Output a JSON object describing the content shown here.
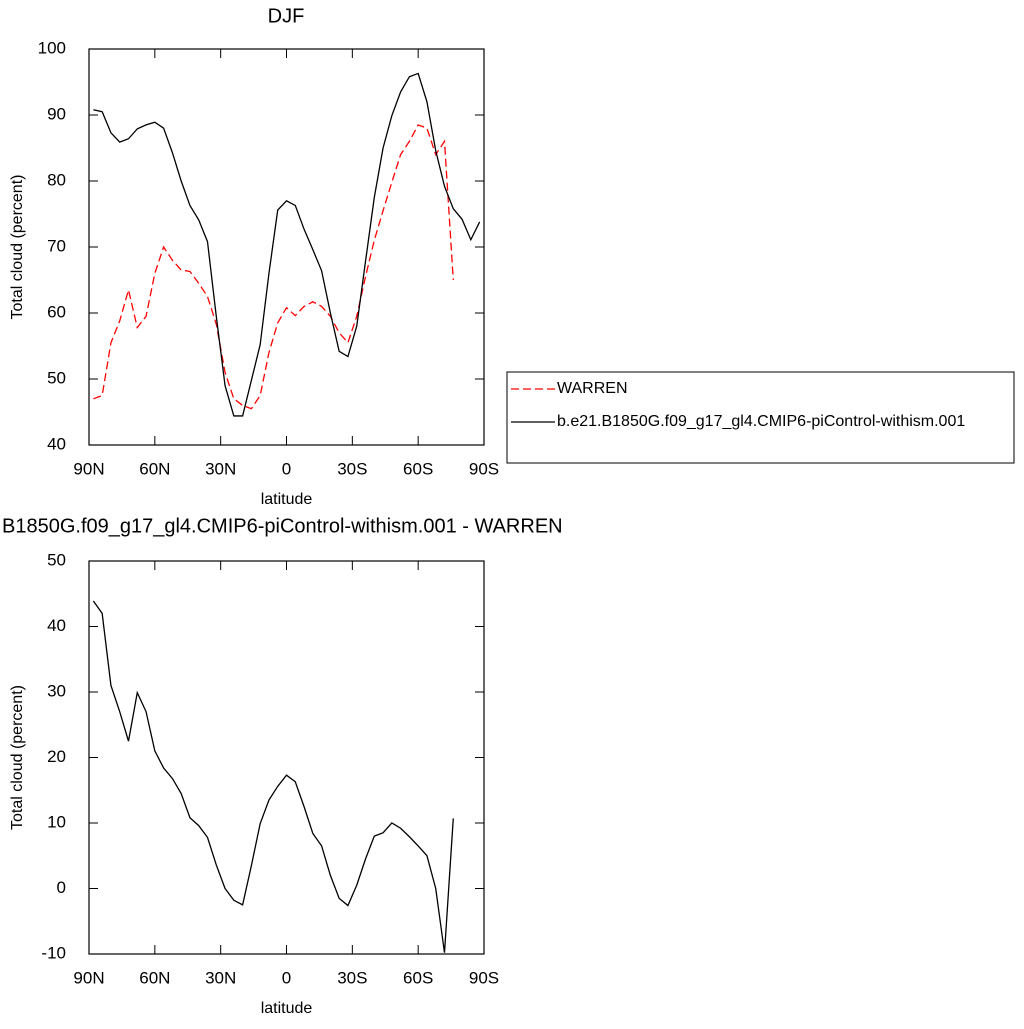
{
  "chart_data": [
    {
      "type": "line",
      "title": "DJF",
      "xlabel": "latitude",
      "ylabel": "Total cloud (percent)",
      "x": [
        88,
        84,
        80,
        76,
        72,
        68,
        64,
        60,
        56,
        52,
        48,
        44,
        40,
        36,
        32,
        28,
        24,
        20,
        16,
        12,
        8,
        4,
        0,
        -4,
        -8,
        -12,
        -16,
        -20,
        -24,
        -28,
        -32,
        -36,
        -40,
        -44,
        -48,
        -52,
        -56,
        -60,
        -64,
        -68,
        -72,
        -76,
        -80,
        -84,
        -88
      ],
      "series": [
        {
          "name": "WARREN",
          "color": "#ff0000",
          "dash": true,
          "values": [
            47.0,
            47.5,
            55.5,
            58.8,
            63.5,
            57.8,
            59.5,
            66.0,
            70.0,
            68.0,
            66.5,
            66.3,
            64.5,
            62.5,
            58.3,
            51.0,
            47.0,
            46.0,
            45.5,
            47.5,
            54.0,
            58.5,
            60.8,
            59.6,
            61.0,
            61.7,
            61.0,
            59.5,
            57.0,
            55.5,
            59.5,
            65.5,
            71.0,
            75.5,
            79.8,
            84.0,
            86.0,
            88.5,
            88.0,
            84.0,
            86.0,
            65.0,
            null,
            null,
            null
          ]
        },
        {
          "name": "b.e21.B1850G.f09_g17_gl4.CMIP6-piControl-withism.001",
          "color": "#000000",
          "dash": false,
          "values": [
            90.8,
            90.5,
            87.3,
            85.9,
            86.4,
            87.9,
            88.5,
            88.9,
            88.0,
            84.3,
            80.0,
            76.3,
            74.1,
            70.8,
            59.5,
            49.0,
            44.4,
            44.4,
            49.8,
            55.2,
            66.0,
            75.6,
            77.0,
            76.3,
            72.7,
            69.6,
            66.4,
            60.0,
            54.2,
            53.4,
            58.0,
            67.8,
            77.5,
            85.0,
            89.9,
            93.5,
            95.8,
            96.3,
            92.0,
            84.6,
            79.2,
            75.8,
            74.2,
            71.1,
            73.8
          ]
        }
      ],
      "xlim": [
        90,
        -90
      ],
      "xticks": [
        {
          "value": 90,
          "label": "90N"
        },
        {
          "value": 60,
          "label": "60N"
        },
        {
          "value": 30,
          "label": "30N"
        },
        0,
        {
          "value": -30,
          "label": "30S"
        },
        {
          "value": -60,
          "label": "60S"
        },
        {
          "value": -90,
          "label": "90S"
        }
      ],
      "ylim": [
        40,
        100
      ],
      "yticks": [
        40,
        50,
        60,
        70,
        80,
        90,
        100
      ],
      "legend": "right"
    },
    {
      "type": "line",
      "title": "B1850G.f09_g17_gl4.CMIP6-piControl-withism.001 - WARREN",
      "xlabel": "latitude",
      "ylabel": "Total cloud (percent)",
      "x": [
        88,
        84,
        80,
        76,
        72,
        68,
        64,
        60,
        56,
        52,
        48,
        44,
        40,
        36,
        32,
        28,
        24,
        20,
        16,
        12,
        8,
        4,
        0,
        -4,
        -8,
        -12,
        -16,
        -20,
        -24,
        -28,
        -32,
        -36,
        -40,
        -44,
        -48,
        -52,
        -56,
        -60,
        -64,
        -68,
        -72,
        -76,
        -80,
        -84,
        -88
      ],
      "values": [
        43.9,
        42.0,
        31.0,
        27.0,
        22.5,
        29.9,
        27.0,
        21.0,
        18.4,
        16.8,
        14.5,
        10.8,
        9.6,
        7.8,
        3.6,
        0.0,
        -1.8,
        -2.5,
        3.5,
        9.9,
        13.5,
        15.6,
        17.3,
        16.3,
        12.5,
        8.4,
        6.5,
        2.0,
        -1.5,
        -2.6,
        0.5,
        4.5,
        8.0,
        8.5,
        10.0,
        9.2,
        7.9,
        6.5,
        5.0,
        0.0,
        -9.8,
        10.7,
        null,
        null,
        null
      ],
      "color": "#000000",
      "xlim": [
        90,
        -90
      ],
      "xticks": [
        {
          "value": 90,
          "label": "90N"
        },
        {
          "value": 60,
          "label": "60N"
        },
        {
          "value": 30,
          "label": "30N"
        },
        0,
        {
          "value": -30,
          "label": "30S"
        },
        {
          "value": -60,
          "label": "60S"
        },
        {
          "value": -90,
          "label": "90S"
        }
      ],
      "ylim": [
        -10,
        50
      ],
      "yticks": [
        -10,
        0,
        10,
        20,
        30,
        40,
        50
      ]
    }
  ]
}
